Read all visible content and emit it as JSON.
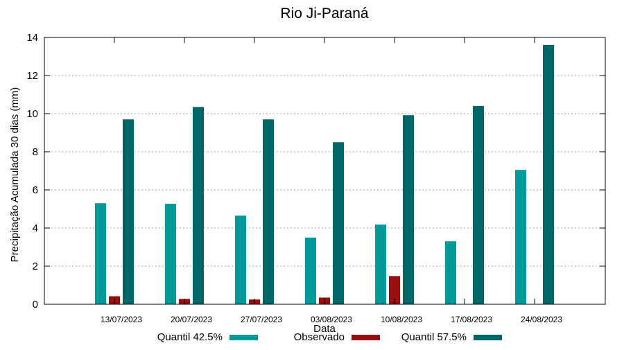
{
  "chart_data": {
    "type": "bar",
    "title": "Rio Ji-Paraná",
    "xlabel": "Data",
    "ylabel": "Precipitação Acumulada 30 dias (mm)",
    "ylim": [
      0,
      14
    ],
    "yticks": [
      0,
      2,
      4,
      6,
      8,
      10,
      12,
      14
    ],
    "grid": true,
    "legend": "bottom",
    "categories": [
      "13/07/2023",
      "20/07/2023",
      "27/07/2023",
      "03/08/2023",
      "10/08/2023",
      "17/08/2023",
      "24/08/2023"
    ],
    "series": [
      {
        "name": "Quantil 42.5%",
        "color": "#009999",
        "values": [
          5.3,
          5.27,
          4.65,
          3.5,
          4.18,
          3.3,
          7.05
        ]
      },
      {
        "name": "Observado",
        "color": "#990e0e",
        "values": [
          0.42,
          0.28,
          0.25,
          0.35,
          1.48,
          null,
          null
        ]
      },
      {
        "name": "Quantil 57.5%",
        "color": "#006666",
        "values": [
          9.7,
          10.35,
          9.7,
          8.5,
          9.92,
          10.4,
          13.6
        ]
      }
    ]
  }
}
